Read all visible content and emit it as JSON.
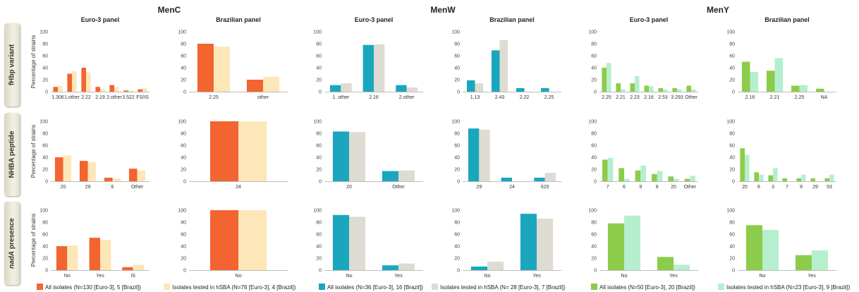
{
  "figure": {
    "groups": [
      "MenC",
      "MenW",
      "MenY"
    ],
    "panels": [
      "Euro-3 panel",
      "Brazilian panel"
    ],
    "rows": [
      {
        "italic": "",
        "rest": "fHbp variant"
      },
      {
        "italic": "",
        "rest": "NHBA peptide"
      },
      {
        "italic": "nadA",
        "rest": " presence"
      }
    ],
    "ylabel": "Percentage of strains"
  },
  "colors": {
    "menc": [
      "#f26430",
      "#fde6b8"
    ],
    "menw": [
      "#1aa7be",
      "#dedbd3"
    ],
    "meny": [
      "#8ccc4a",
      "#b6efce"
    ]
  },
  "legend": [
    {
      "text": "All isolates (N=130 [Euro-3], 5 [Brazil])",
      "color": "#f26430"
    },
    {
      "text": "Isolates tested in hSBA (N=76 [Euro-3], 4 [Brazil])",
      "color": "#fde6b8"
    },
    {
      "text": "All isolates (N=36 [Euro-3], 16 [Brazil])",
      "color": "#1aa7be"
    },
    {
      "text": "Isolates tested in hSBA (N= 28 [Euro-3], 7 [Brazil])",
      "color": "#dedbd3"
    },
    {
      "text": "All isolates (N=50 [Euro-3], 20 [Brazil])",
      "color": "#8ccc4a"
    },
    {
      "text": "Isolates tested in hSBA (N=23 [Euro-3], 9 [Brazil])",
      "color": "#b6efce"
    }
  ],
  "chart_data": [
    {
      "type": "bar",
      "group": "MenC",
      "panel": "Euro-3 panel",
      "row": "fHbp variant",
      "ylim": [
        0,
        100
      ],
      "yticks": [
        0,
        20,
        40,
        60,
        80,
        100
      ],
      "categories": [
        "1.306",
        "1.other",
        "2.22",
        "2.19",
        "2.other",
        "3.522",
        "FS/IS"
      ],
      "series": [
        {
          "name": "All isolates (N=130 [Euro-3], 5 [Brazil])",
          "values": [
            8,
            30,
            40,
            8,
            11,
            2,
            4
          ]
        },
        {
          "name": "Isolates tested in hSBA (N=76 [Euro-3], 4 [Brazil])",
          "values": [
            10,
            34,
            32,
            5,
            8,
            2,
            6
          ]
        }
      ]
    },
    {
      "type": "bar",
      "group": "MenC",
      "panel": "Brazilian panel",
      "row": "fHbp variant",
      "ylim": [
        0,
        100
      ],
      "yticks": [
        0,
        20,
        40,
        60,
        80,
        100
      ],
      "categories": [
        "2.25",
        "other"
      ],
      "series": [
        {
          "name": "All isolates (N=130 [Euro-3], 5 [Brazil])",
          "values": [
            80,
            20
          ]
        },
        {
          "name": "Isolates tested in hSBA (N=76 [Euro-3], 4 [Brazil])",
          "values": [
            75,
            25
          ]
        }
      ]
    },
    {
      "type": "bar",
      "group": "MenW",
      "panel": "Euro-3 panel",
      "row": "fHbp variant",
      "ylim": [
        0,
        100
      ],
      "yticks": [
        0,
        20,
        40,
        60,
        80,
        100
      ],
      "categories": [
        "1. other",
        "2.16",
        "2.other"
      ],
      "series": [
        {
          "name": "All isolates (N=36 [Euro-3], 16 [Brazil])",
          "values": [
            11,
            78,
            11
          ]
        },
        {
          "name": "Isolates tested in hSBA (N= 28 [Euro-3], 7 [Brazil])",
          "values": [
            14,
            79,
            7
          ]
        }
      ]
    },
    {
      "type": "bar",
      "group": "MenW",
      "panel": "Brazilian panel",
      "row": "fHbp variant",
      "ylim": [
        0,
        100
      ],
      "yticks": [
        0,
        20,
        40,
        60,
        80,
        100
      ],
      "categories": [
        "1.13",
        "2.43",
        "2.22",
        "2.25"
      ],
      "series": [
        {
          "name": "All isolates (N=36 [Euro-3], 16 [Brazil])",
          "values": [
            19,
            69,
            6,
            6
          ]
        },
        {
          "name": "Isolates tested in hSBA (N= 28 [Euro-3], 7 [Brazil])",
          "values": [
            14,
            86,
            0,
            0
          ]
        }
      ]
    },
    {
      "type": "bar",
      "group": "MenY",
      "panel": "Euro-3 panel",
      "row": "fHbp variant",
      "ylim": [
        0,
        100
      ],
      "yticks": [
        0,
        20,
        40,
        60,
        80,
        100
      ],
      "categories": [
        "2.25",
        "2.21",
        "2.23",
        "2.16",
        "2.53",
        "3.293",
        "Other"
      ],
      "series": [
        {
          "name": "All isolates (N=50 [Euro-3], 20 [Brazil])",
          "values": [
            40,
            14,
            14,
            10,
            6,
            6,
            10
          ]
        },
        {
          "name": "Isolates tested in hSBA (N=23 [Euro-3], 9 [Brazil])",
          "values": [
            48,
            4,
            26,
            9,
            4,
            4,
            4
          ]
        }
      ]
    },
    {
      "type": "bar",
      "group": "MenY",
      "panel": "Brazilian panel",
      "row": "fHbp variant",
      "ylim": [
        0,
        100
      ],
      "yticks": [
        0,
        20,
        40,
        60,
        80,
        100
      ],
      "categories": [
        "2.16",
        "2.21",
        "2.25",
        "NA"
      ],
      "series": [
        {
          "name": "All isolates (N=50 [Euro-3], 20 [Brazil])",
          "values": [
            50,
            35,
            10,
            5
          ]
        },
        {
          "name": "Isolates tested in hSBA (N=23 [Euro-3], 9 [Brazil])",
          "values": [
            33,
            56,
            11,
            0
          ]
        }
      ]
    },
    {
      "type": "bar",
      "group": "MenC",
      "panel": "Euro-3 panel",
      "row": "NHBA peptide",
      "ylim": [
        0,
        100
      ],
      "yticks": [
        0,
        20,
        40,
        60,
        80,
        100
      ],
      "categories": [
        "20",
        "29",
        "6",
        "Other"
      ],
      "series": [
        {
          "name": "All isolates (N=130 [Euro-3], 5 [Brazil])",
          "values": [
            40,
            34,
            6,
            21
          ]
        },
        {
          "name": "Isolates tested in hSBA (N=76 [Euro-3], 4 [Brazil])",
          "values": [
            43,
            32,
            5,
            18
          ]
        }
      ]
    },
    {
      "type": "bar",
      "group": "MenC",
      "panel": "Brazilian panel",
      "row": "NHBA peptide",
      "ylim": [
        0,
        100
      ],
      "yticks": [
        0,
        20,
        40,
        60,
        80,
        100
      ],
      "categories": [
        "24"
      ],
      "series": [
        {
          "name": "All isolates (N=130 [Euro-3], 5 [Brazil])",
          "values": [
            100
          ]
        },
        {
          "name": "Isolates tested in hSBA (N=76 [Euro-3], 4 [Brazil])",
          "values": [
            100
          ]
        }
      ]
    },
    {
      "type": "bar",
      "group": "MenW",
      "panel": "Euro-3 panel",
      "row": "NHBA peptide",
      "ylim": [
        0,
        100
      ],
      "yticks": [
        0,
        20,
        40,
        60,
        80,
        100
      ],
      "categories": [
        "20",
        "Other"
      ],
      "series": [
        {
          "name": "All isolates (N=36 [Euro-3], 16 [Brazil])",
          "values": [
            83,
            17
          ]
        },
        {
          "name": "Isolates tested in hSBA (N= 28 [Euro-3], 7 [Brazil])",
          "values": [
            82,
            18
          ]
        }
      ]
    },
    {
      "type": "bar",
      "group": "MenW",
      "panel": "Brazilian panel",
      "row": "NHBA peptide",
      "ylim": [
        0,
        100
      ],
      "yticks": [
        0,
        20,
        40,
        60,
        80,
        100
      ],
      "categories": [
        "29",
        "24",
        "620"
      ],
      "series": [
        {
          "name": "All isolates (N=36 [Euro-3], 16 [Brazil])",
          "values": [
            88,
            6,
            6
          ]
        },
        {
          "name": "Isolates tested in hSBA (N= 28 [Euro-3], 7 [Brazil])",
          "values": [
            86,
            0,
            14
          ]
        }
      ]
    },
    {
      "type": "bar",
      "group": "MenY",
      "panel": "Euro-3 panel",
      "row": "NHBA peptide",
      "ylim": [
        0,
        100
      ],
      "yticks": [
        0,
        20,
        40,
        60,
        80,
        100
      ],
      "categories": [
        "7",
        "6",
        "9",
        "8",
        "20",
        "Other"
      ],
      "series": [
        {
          "name": "All isolates (N=50 [Euro-3], 20 [Brazil])",
          "values": [
            36,
            22,
            18,
            12,
            8,
            4
          ]
        },
        {
          "name": "Isolates tested in hSBA (N=23 [Euro-3], 9 [Brazil])",
          "values": [
            39,
            4,
            26,
            17,
            4,
            9
          ]
        }
      ]
    },
    {
      "type": "bar",
      "group": "MenY",
      "panel": "Brazilian panel",
      "row": "NHBA peptide",
      "ylim": [
        0,
        100
      ],
      "yticks": [
        0,
        20,
        40,
        60,
        80,
        100
      ],
      "categories": [
        "20",
        "6",
        "3",
        "7",
        "9",
        "29",
        "53"
      ],
      "series": [
        {
          "name": "All isolates (N=50 [Euro-3], 20 [Brazil])",
          "values": [
            55,
            15,
            10,
            5,
            5,
            5,
            5
          ]
        },
        {
          "name": "Isolates tested in hSBA (N=23 [Euro-3], 9 [Brazil])",
          "values": [
            44,
            11,
            22,
            0,
            11,
            0,
            11
          ]
        }
      ]
    },
    {
      "type": "bar",
      "group": "MenC",
      "panel": "Euro-3 panel",
      "row": "nadA presence",
      "ylim": [
        0,
        100
      ],
      "yticks": [
        0,
        20,
        40,
        60,
        80,
        100
      ],
      "categories": [
        "No",
        "Yes",
        "IS"
      ],
      "series": [
        {
          "name": "All isolates (N=130 [Euro-3], 5 [Brazil])",
          "values": [
            40,
            54,
            5
          ]
        },
        {
          "name": "Isolates tested in hSBA (N=76 [Euro-3], 4 [Brazil])",
          "values": [
            41,
            50,
            9
          ]
        }
      ]
    },
    {
      "type": "bar",
      "group": "MenC",
      "panel": "Brazilian panel",
      "row": "nadA presence",
      "ylim": [
        0,
        100
      ],
      "yticks": [
        0,
        20,
        40,
        60,
        80,
        100
      ],
      "categories": [
        "No"
      ],
      "series": [
        {
          "name": "All isolates (N=130 [Euro-3], 5 [Brazil])",
          "values": [
            100
          ]
        },
        {
          "name": "Isolates tested in hSBA (N=76 [Euro-3], 4 [Brazil])",
          "values": [
            100
          ]
        }
      ]
    },
    {
      "type": "bar",
      "group": "MenW",
      "panel": "Euro-3 panel",
      "row": "nadA presence",
      "ylim": [
        0,
        100
      ],
      "yticks": [
        0,
        20,
        40,
        60,
        80,
        100
      ],
      "categories": [
        "No",
        "Yes"
      ],
      "series": [
        {
          "name": "All isolates (N=36 [Euro-3], 16 [Brazil])",
          "values": [
            92,
            8
          ]
        },
        {
          "name": "Isolates tested in hSBA (N= 28 [Euro-3], 7 [Brazil])",
          "values": [
            89,
            11
          ]
        }
      ]
    },
    {
      "type": "bar",
      "group": "MenW",
      "panel": "Brazilian panel",
      "row": "nadA presence",
      "ylim": [
        0,
        100
      ],
      "yticks": [
        0,
        20,
        40,
        60,
        80,
        100
      ],
      "categories": [
        "No",
        "Yes"
      ],
      "series": [
        {
          "name": "All isolates (N=36 [Euro-3], 16 [Brazil])",
          "values": [
            6,
            94
          ]
        },
        {
          "name": "Isolates tested in hSBA (N= 28 [Euro-3], 7 [Brazil])",
          "values": [
            14,
            86
          ]
        }
      ]
    },
    {
      "type": "bar",
      "group": "MenY",
      "panel": "Euro-3 panel",
      "row": "nadA presence",
      "ylim": [
        0,
        100
      ],
      "yticks": [
        0,
        20,
        40,
        60,
        80,
        100
      ],
      "categories": [
        "No",
        "Yes"
      ],
      "series": [
        {
          "name": "All isolates (N=50 [Euro-3], 20 [Brazil])",
          "values": [
            78,
            22
          ]
        },
        {
          "name": "Isolates tested in hSBA (N=23 [Euro-3], 9 [Brazil])",
          "values": [
            91,
            9
          ]
        }
      ]
    },
    {
      "type": "bar",
      "group": "MenY",
      "panel": "Brazilian panel",
      "row": "nadA presence",
      "ylim": [
        0,
        100
      ],
      "yticks": [
        0,
        20,
        40,
        60,
        80,
        100
      ],
      "categories": [
        "No",
        "Yes"
      ],
      "series": [
        {
          "name": "All isolates (N=50 [Euro-3], 20 [Brazil])",
          "values": [
            75,
            25
          ]
        },
        {
          "name": "Isolates tested in hSBA (N=23 [Euro-3], 9 [Brazil])",
          "values": [
            67,
            33
          ]
        }
      ]
    }
  ]
}
